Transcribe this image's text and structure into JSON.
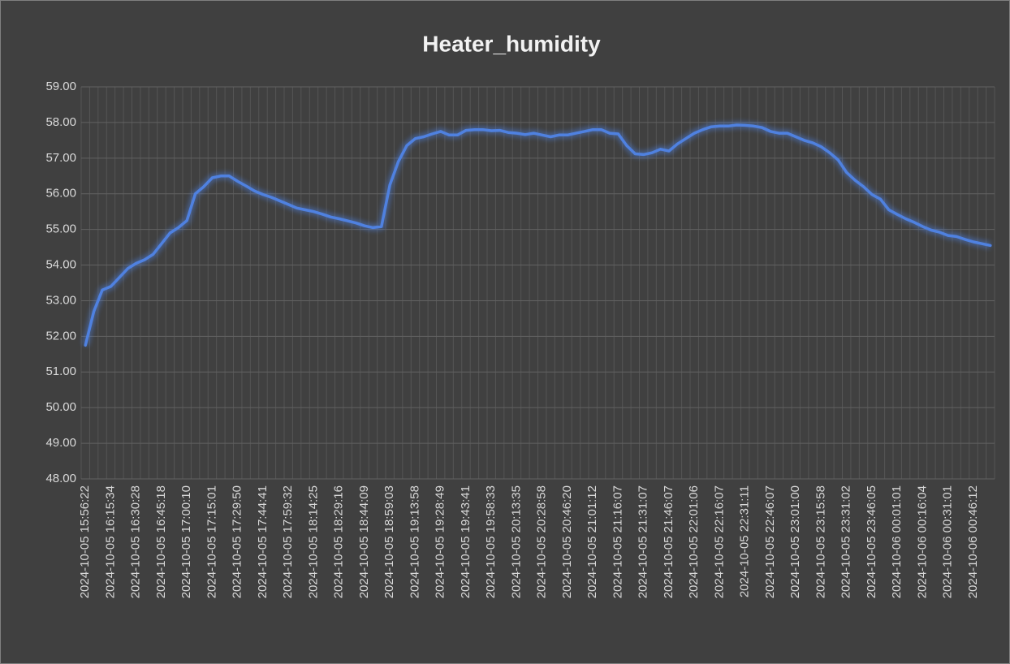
{
  "chart_data": {
    "type": "line",
    "title": "Heater_humidity",
    "color": "#4f81e0",
    "grid": true,
    "ylim": [
      48,
      59
    ],
    "yticks": [
      {
        "value": 48,
        "label": "48.00"
      },
      {
        "value": 49,
        "label": "49.00"
      },
      {
        "value": 50,
        "label": "50.00"
      },
      {
        "value": 51,
        "label": "51.00"
      },
      {
        "value": 52,
        "label": "52.00"
      },
      {
        "value": 53,
        "label": "53.00"
      },
      {
        "value": 54,
        "label": "54.00"
      },
      {
        "value": 55,
        "label": "55.00"
      },
      {
        "value": 56,
        "label": "56.00"
      },
      {
        "value": 57,
        "label": "57.00"
      },
      {
        "value": 58,
        "label": "58.00"
      },
      {
        "value": 59,
        "label": "59.00"
      }
    ],
    "categories": [
      "2024-10-05 15:56:22",
      null,
      null,
      "2024-10-05 16:15:34",
      null,
      null,
      "2024-10-05 16:30:28",
      null,
      null,
      "2024-10-05 16:45:18",
      null,
      null,
      "2024-10-05 17:00:10",
      null,
      null,
      "2024-10-05 17:15:01",
      null,
      null,
      "2024-10-05 17:29:50",
      null,
      null,
      "2024-10-05 17:44:41",
      null,
      null,
      "2024-10-05 17:59:32",
      null,
      null,
      "2024-10-05 18:14:25",
      null,
      null,
      "2024-10-05 18:29:16",
      null,
      null,
      "2024-10-05 18:44:09",
      null,
      null,
      "2024-10-05 18:59:03",
      null,
      null,
      "2024-10-05 19:13:58",
      null,
      null,
      "2024-10-05 19:28:49",
      null,
      null,
      "2024-10-05 19:43:41",
      null,
      null,
      "2024-10-05 19:58:33",
      null,
      null,
      "2024-10-05 20:13:35",
      null,
      null,
      "2024-10-05 20:28:58",
      null,
      null,
      "2024-10-05 20:46:20",
      null,
      null,
      "2024-10-05 21:01:12",
      null,
      null,
      "2024-10-05 21:16:07",
      null,
      null,
      "2024-10-05 21:31:07",
      null,
      null,
      "2024-10-05 21:46:07",
      null,
      null,
      "2024-10-05 22:01:06",
      null,
      null,
      "2024-10-05 22:16:07",
      null,
      null,
      "2024-10-05 22:31:11",
      null,
      null,
      "2024-10-05 22:46:07",
      null,
      null,
      "2024-10-05 23:01:00",
      null,
      null,
      "2024-10-05 23:15:58",
      null,
      null,
      "2024-10-05 23:31:02",
      null,
      null,
      "2024-10-05 23:46:05",
      null,
      null,
      "2024-10-06 00:01:01",
      null,
      null,
      "2024-10-06 00:16:04",
      null,
      null,
      "2024-10-06 00:31:01",
      null,
      null,
      "2024-10-06 00:46:12",
      null,
      null
    ],
    "values": [
      51.75,
      52.7,
      53.3,
      53.4,
      53.65,
      53.9,
      54.05,
      54.15,
      54.3,
      54.6,
      54.9,
      55.05,
      55.25,
      56.0,
      56.2,
      56.45,
      56.5,
      56.5,
      56.35,
      56.22,
      56.08,
      55.98,
      55.9,
      55.8,
      55.7,
      55.6,
      55.55,
      55.5,
      55.43,
      55.35,
      55.3,
      55.24,
      55.18,
      55.1,
      55.05,
      55.08,
      56.25,
      56.9,
      57.35,
      57.55,
      57.6,
      57.68,
      57.75,
      57.65,
      57.65,
      57.78,
      57.8,
      57.8,
      57.77,
      57.78,
      57.72,
      57.7,
      57.66,
      57.7,
      57.65,
      57.6,
      57.65,
      57.65,
      57.7,
      57.75,
      57.8,
      57.8,
      57.7,
      57.68,
      57.35,
      57.12,
      57.1,
      57.15,
      57.25,
      57.2,
      57.4,
      57.55,
      57.7,
      57.8,
      57.88,
      57.9,
      57.9,
      57.93,
      57.92,
      57.9,
      57.86,
      57.75,
      57.7,
      57.7,
      57.6,
      57.5,
      57.43,
      57.32,
      57.15,
      56.95,
      56.6,
      56.38,
      56.2,
      55.98,
      55.85,
      55.55,
      55.42,
      55.3,
      55.2,
      55.08,
      54.98,
      54.92,
      54.83,
      54.8,
      54.72,
      54.65,
      54.6,
      54.55
    ]
  }
}
